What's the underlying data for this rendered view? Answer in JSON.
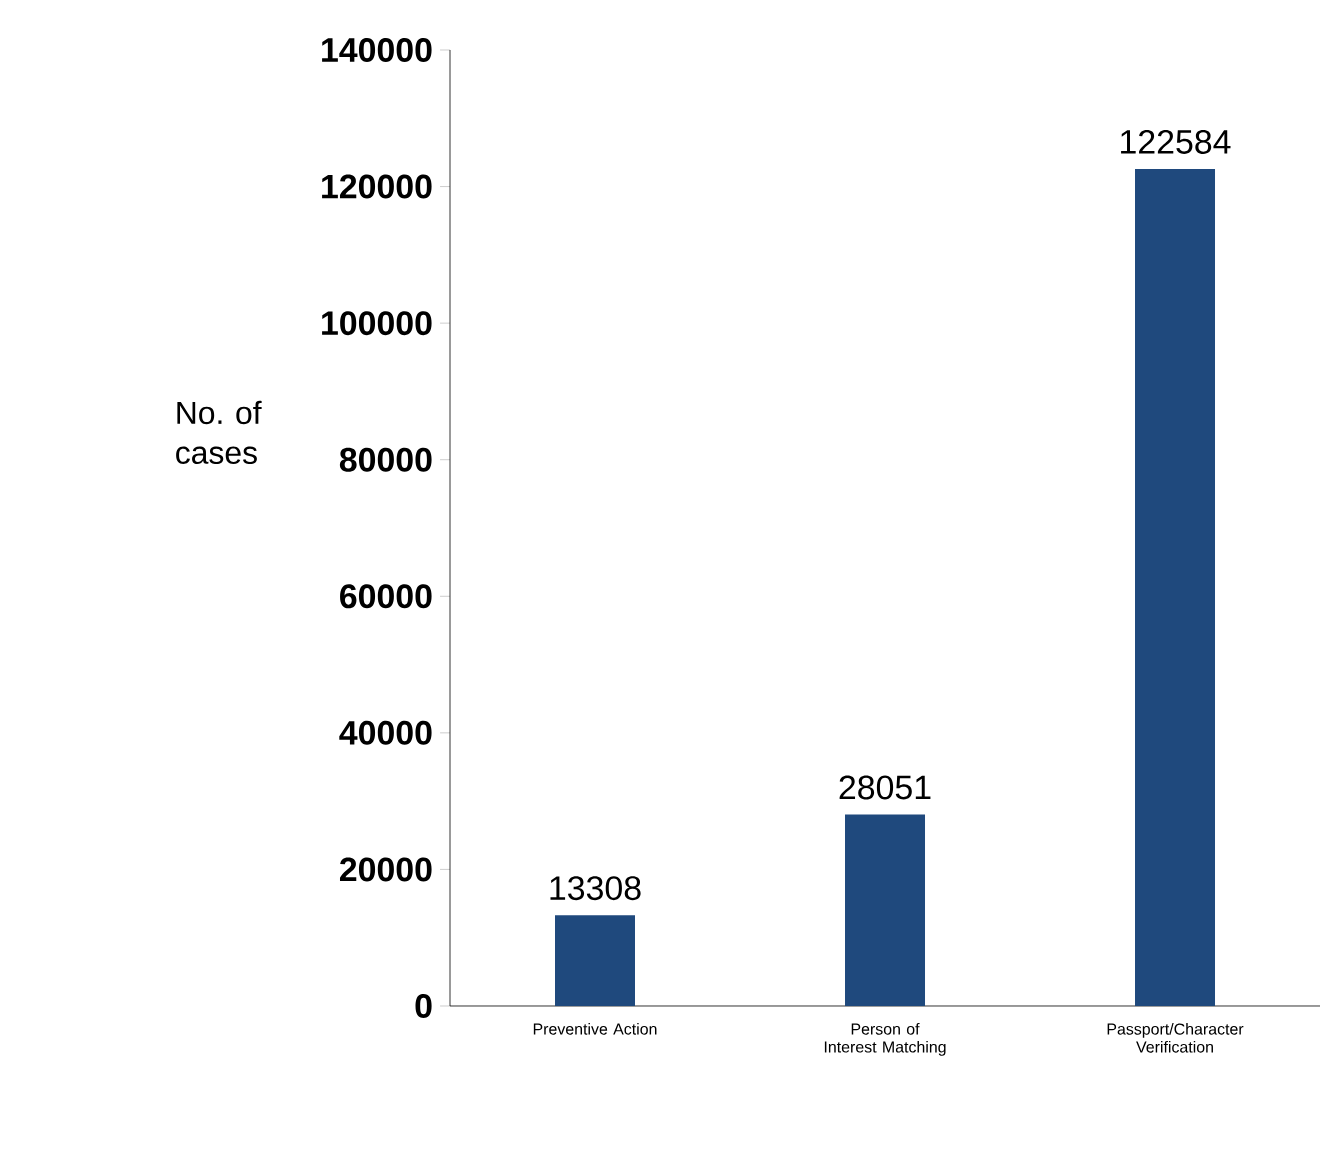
{
  "chart_data": {
    "type": "bar",
    "ylabel": "No. of cases",
    "categories": [
      "Preventive Action",
      "Person of Interest Matching",
      "Passport/Character Verification"
    ],
    "values": [
      13308,
      28051,
      122584
    ],
    "color": "#1f497d",
    "ylim": [
      0,
      140000
    ],
    "yticks": [
      0,
      20000,
      40000,
      60000,
      80000,
      100000,
      120000,
      140000
    ],
    "data_labels": true,
    "grid": false
  }
}
